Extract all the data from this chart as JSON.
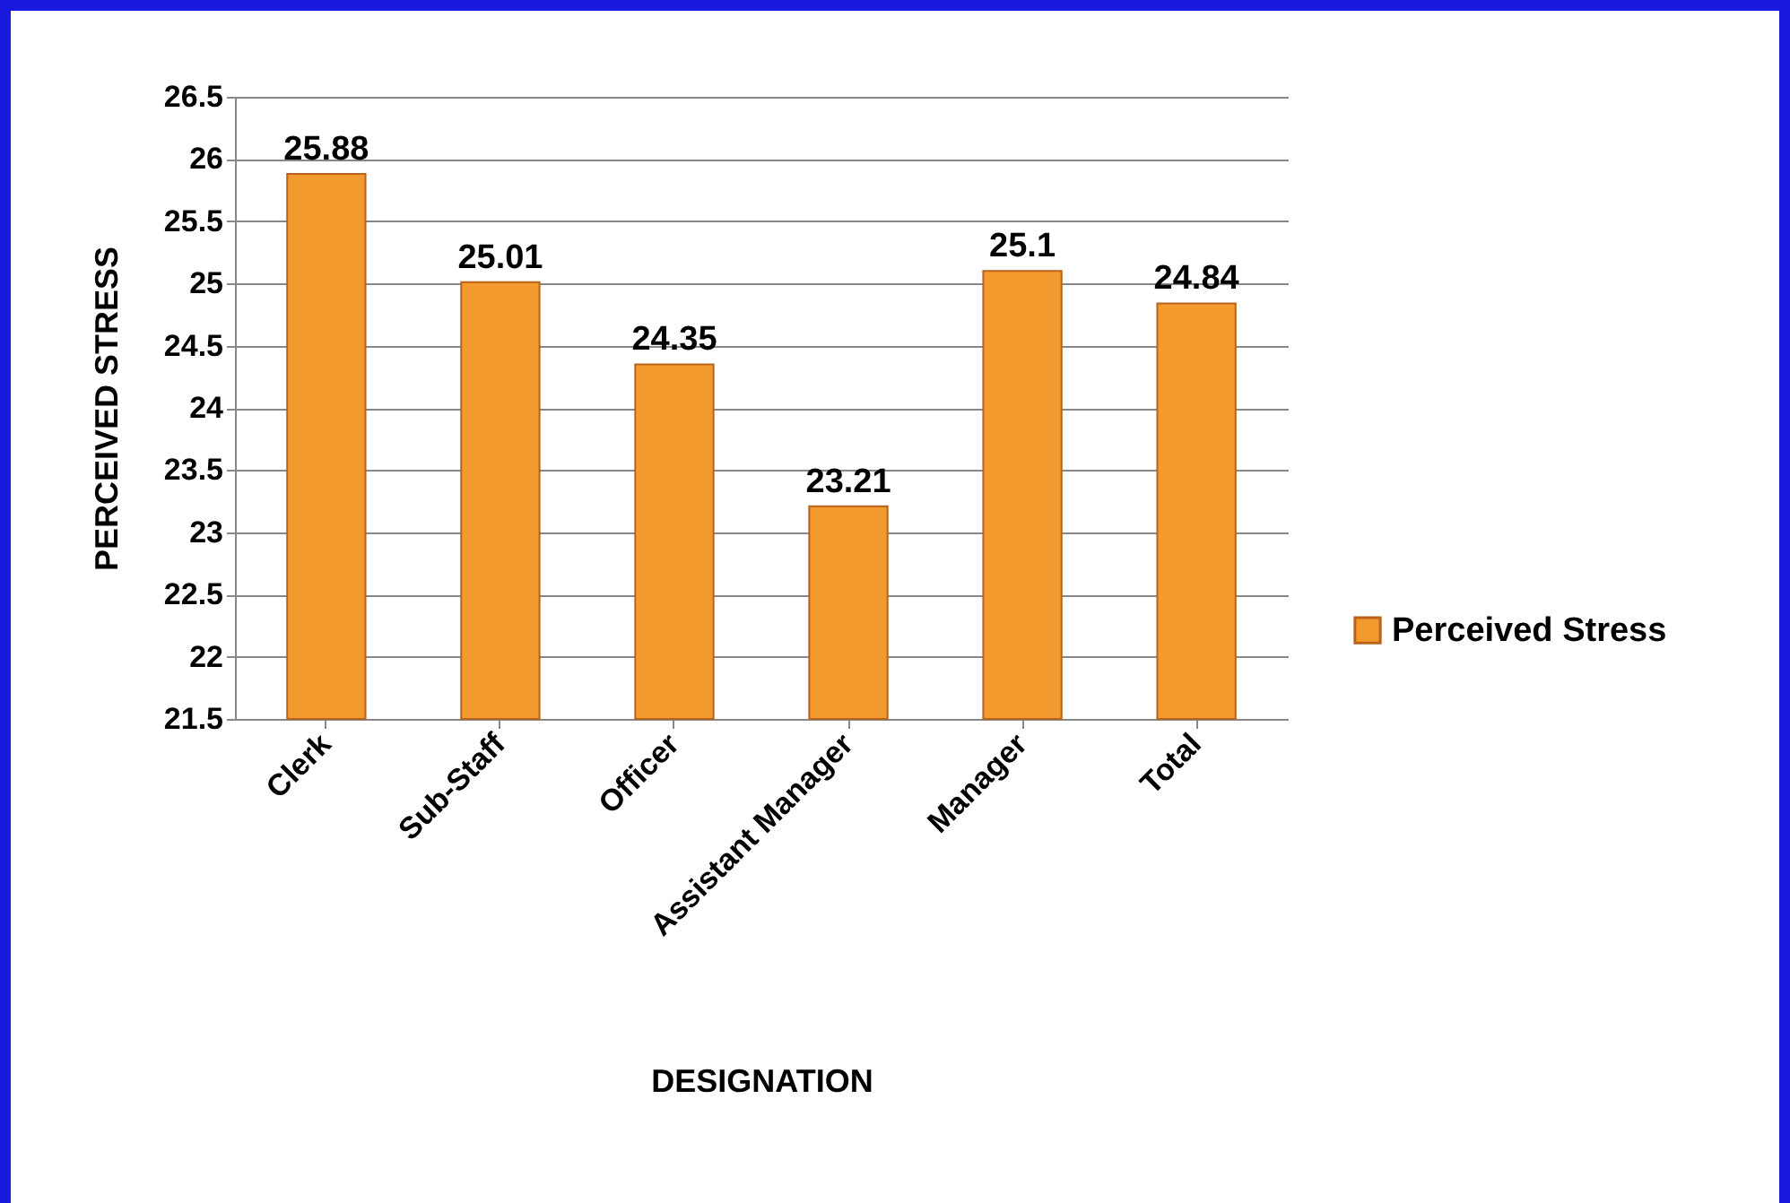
{
  "chart_data": {
    "type": "bar",
    "xlabel": "DESIGNATION",
    "ylabel": "PERCEIVED STRESS",
    "categories": [
      "Clerk",
      "Sub-Staff",
      "Officer",
      "Assistant Manager",
      "Manager",
      "Total"
    ],
    "series": [
      {
        "name": "Perceived Stress",
        "color": "#f39a2e",
        "values": [
          25.88,
          25.01,
          24.35,
          23.21,
          25.1,
          24.84
        ]
      }
    ],
    "ylim": [
      21.5,
      26.5
    ],
    "yticks": [
      21.5,
      22,
      22.5,
      23,
      23.5,
      24,
      24.5,
      25,
      25.5,
      26,
      26.5
    ],
    "grid": "y",
    "legend": "right",
    "data_labels": true
  }
}
